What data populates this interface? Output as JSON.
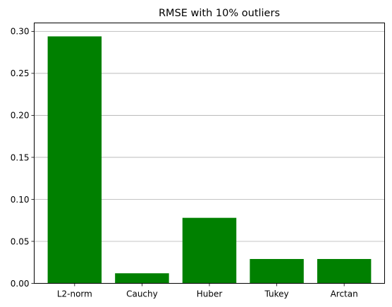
{
  "chart_data": {
    "type": "bar",
    "title": "RMSE with 10% outliers",
    "xlabel": "",
    "ylabel": "",
    "categories": [
      "L2-norm",
      "Cauchy",
      "Huber",
      "Tukey",
      "Arctan"
    ],
    "values": [
      0.294,
      0.012,
      0.078,
      0.029,
      0.029
    ],
    "ylim": [
      0,
      0.31
    ],
    "yticks": [
      "0.00",
      "0.05",
      "0.10",
      "0.15",
      "0.20",
      "0.25",
      "0.30"
    ],
    "grid": "horizontal",
    "bar_color": "#008000",
    "grid_color": "#b0b0b0"
  }
}
